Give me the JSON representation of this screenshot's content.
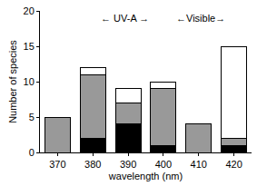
{
  "chart_data": {
    "type": "bar",
    "stacked": true,
    "x_label": "wavelength (nm)",
    "y_label": "Number of species",
    "categories": [
      "370",
      "380",
      "390",
      "400",
      "410",
      "420"
    ],
    "series": [
      {
        "color": "#000000",
        "values": [
          0,
          2,
          4,
          1,
          0,
          1
        ]
      },
      {
        "color": "#999999",
        "values": [
          5,
          9,
          3,
          8,
          4,
          1
        ]
      },
      {
        "color": "#ffffff",
        "values": [
          0,
          1,
          2,
          1,
          0,
          13
        ]
      }
    ],
    "annotations": [
      "← UV-A →",
      "←Visible→"
    ],
    "ylim": [
      0,
      20
    ],
    "yticks": [
      0,
      5,
      10,
      15,
      20
    ],
    "grid": false
  }
}
